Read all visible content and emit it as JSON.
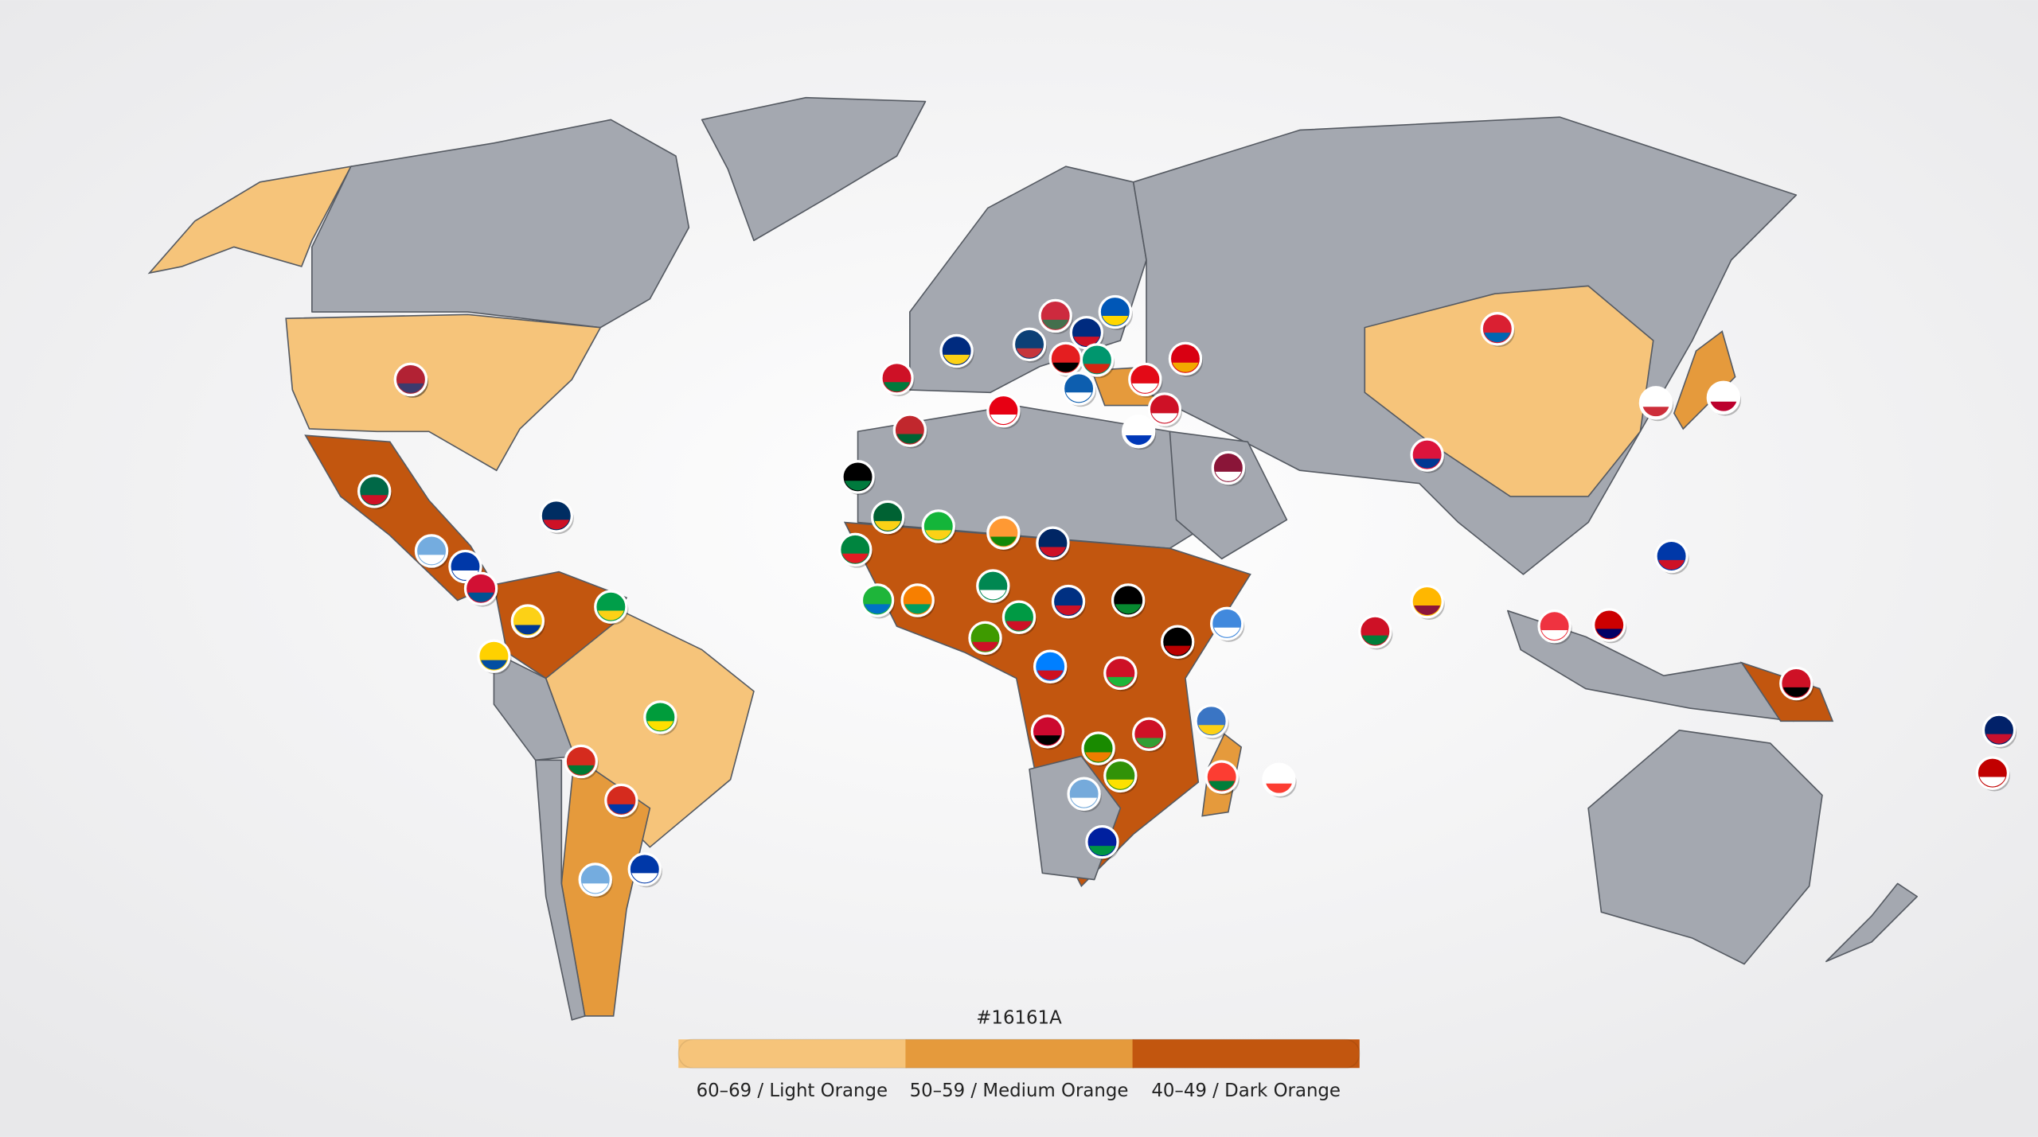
{
  "legend": {
    "title": "#16161A",
    "items": [
      {
        "label": "60–69 / Light Orange",
        "color": "#f6c47a"
      },
      {
        "label": "50–59 / Medium Orange",
        "color": "#e59a3c"
      },
      {
        "label": "40–49 / Dark Orange",
        "color": "#c2560f"
      }
    ]
  }
}
